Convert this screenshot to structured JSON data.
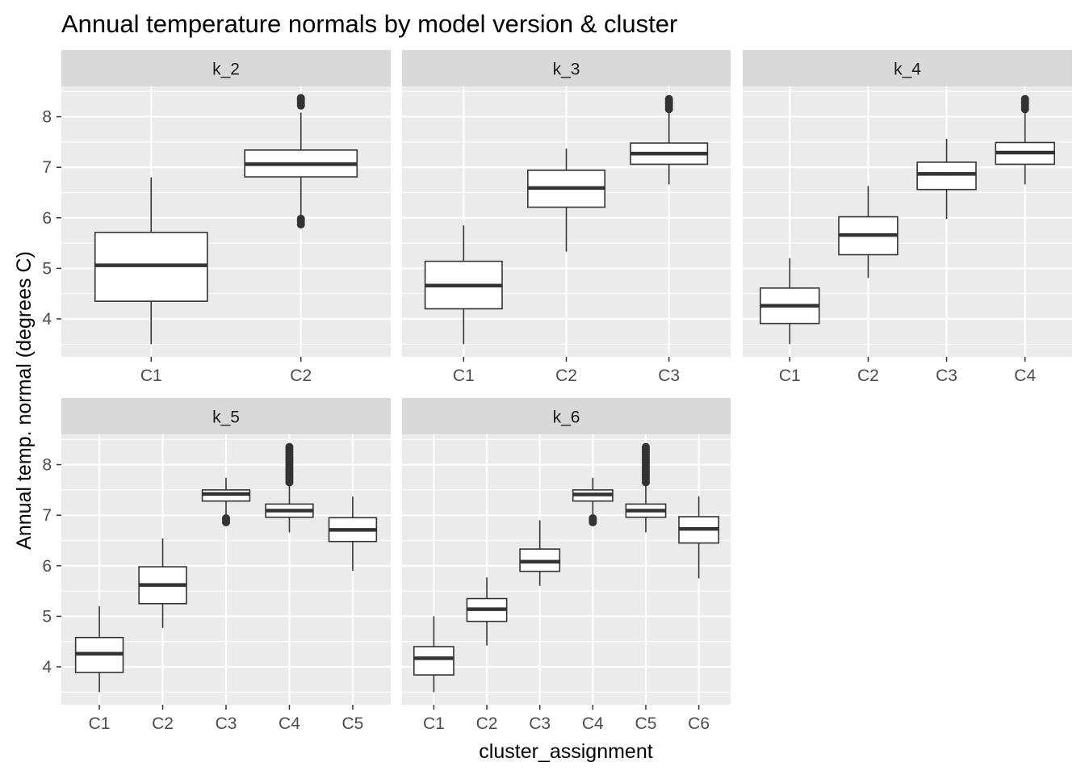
{
  "chart_data": {
    "type": "boxplot",
    "title": "Annual temperature normals by model version & cluster",
    "xlabel": "cluster_assignment",
    "ylabel": "Annual temp. normal (degrees C)",
    "y_ticks": [
      4,
      5,
      6,
      7,
      8
    ],
    "ylim": [
      3.25,
      8.6
    ],
    "grid": true,
    "panels": [
      {
        "label": "k_2",
        "boxes": [
          {
            "cat": "C1",
            "lw": 3.5,
            "q1": 4.35,
            "med": 5.06,
            "q3": 5.71,
            "uw": 6.8,
            "out": []
          },
          {
            "cat": "C2",
            "lw": 6.0,
            "q1": 6.81,
            "med": 7.06,
            "q3": 7.34,
            "uw": 8.08,
            "out": [
              5.87,
              5.93,
              5.98,
              8.22,
              8.28,
              8.33,
              8.37
            ]
          }
        ]
      },
      {
        "label": "k_3",
        "boxes": [
          {
            "cat": "C1",
            "lw": 3.5,
            "q1": 4.2,
            "med": 4.66,
            "q3": 5.14,
            "uw": 5.85,
            "out": []
          },
          {
            "cat": "C2",
            "lw": 5.33,
            "q1": 6.21,
            "med": 6.59,
            "q3": 6.94,
            "uw": 7.37,
            "out": []
          },
          {
            "cat": "C3",
            "lw": 6.66,
            "q1": 7.06,
            "med": 7.27,
            "q3": 7.48,
            "uw": 8.1,
            "out": [
              8.15,
              8.2,
              8.25,
              8.3,
              8.35
            ]
          }
        ]
      },
      {
        "label": "k_4",
        "boxes": [
          {
            "cat": "C1",
            "lw": 3.5,
            "q1": 3.91,
            "med": 4.26,
            "q3": 4.61,
            "uw": 5.2,
            "out": []
          },
          {
            "cat": "C2",
            "lw": 4.81,
            "q1": 5.27,
            "med": 5.66,
            "q3": 6.02,
            "uw": 6.63,
            "out": []
          },
          {
            "cat": "C3",
            "lw": 5.98,
            "q1": 6.56,
            "med": 6.87,
            "q3": 7.1,
            "uw": 7.56,
            "out": []
          },
          {
            "cat": "C4",
            "lw": 6.66,
            "q1": 7.06,
            "med": 7.29,
            "q3": 7.49,
            "uw": 8.1,
            "out": [
              8.15,
              8.2,
              8.25,
              8.3,
              8.35
            ]
          }
        ]
      },
      {
        "label": "k_5",
        "boxes": [
          {
            "cat": "C1",
            "lw": 3.5,
            "q1": 3.89,
            "med": 4.26,
            "q3": 4.58,
            "uw": 5.2,
            "out": []
          },
          {
            "cat": "C2",
            "lw": 4.77,
            "q1": 5.25,
            "med": 5.62,
            "q3": 5.98,
            "uw": 6.54,
            "out": []
          },
          {
            "cat": "C3",
            "lw": 6.97,
            "q1": 7.28,
            "med": 7.42,
            "q3": 7.5,
            "uw": 7.74,
            "out": [
              6.86,
              6.9,
              6.94
            ]
          },
          {
            "cat": "C4",
            "lw": 6.66,
            "q1": 6.96,
            "med": 7.09,
            "q3": 7.22,
            "uw": 7.6,
            "out": [
              7.65,
              7.7,
              7.75,
              7.8,
              7.85,
              7.9,
              7.95,
              8.0,
              8.05,
              8.1,
              8.15,
              8.2,
              8.25,
              8.3,
              8.35
            ]
          },
          {
            "cat": "C5",
            "lw": 5.9,
            "q1": 6.48,
            "med": 6.71,
            "q3": 6.95,
            "uw": 7.37,
            "out": []
          }
        ]
      },
      {
        "label": "k_6",
        "boxes": [
          {
            "cat": "C1",
            "lw": 3.5,
            "q1": 3.84,
            "med": 4.17,
            "q3": 4.4,
            "uw": 5.0,
            "out": []
          },
          {
            "cat": "C2",
            "lw": 4.42,
            "q1": 4.9,
            "med": 5.14,
            "q3": 5.35,
            "uw": 5.77,
            "out": []
          },
          {
            "cat": "C3",
            "lw": 5.6,
            "q1": 5.89,
            "med": 6.08,
            "q3": 6.33,
            "uw": 6.9,
            "out": []
          },
          {
            "cat": "C4",
            "lw": 6.97,
            "q1": 7.28,
            "med": 7.41,
            "q3": 7.5,
            "uw": 7.74,
            "out": [
              6.86,
              6.9,
              6.94
            ]
          },
          {
            "cat": "C5",
            "lw": 6.66,
            "q1": 6.96,
            "med": 7.09,
            "q3": 7.22,
            "uw": 7.6,
            "out": [
              7.65,
              7.7,
              7.75,
              7.8,
              7.85,
              7.9,
              7.95,
              8.0,
              8.05,
              8.1,
              8.15,
              8.2,
              8.25,
              8.3,
              8.35
            ]
          },
          {
            "cat": "C6",
            "lw": 5.75,
            "q1": 6.45,
            "med": 6.73,
            "q3": 6.97,
            "uw": 7.37,
            "out": []
          }
        ]
      }
    ]
  }
}
